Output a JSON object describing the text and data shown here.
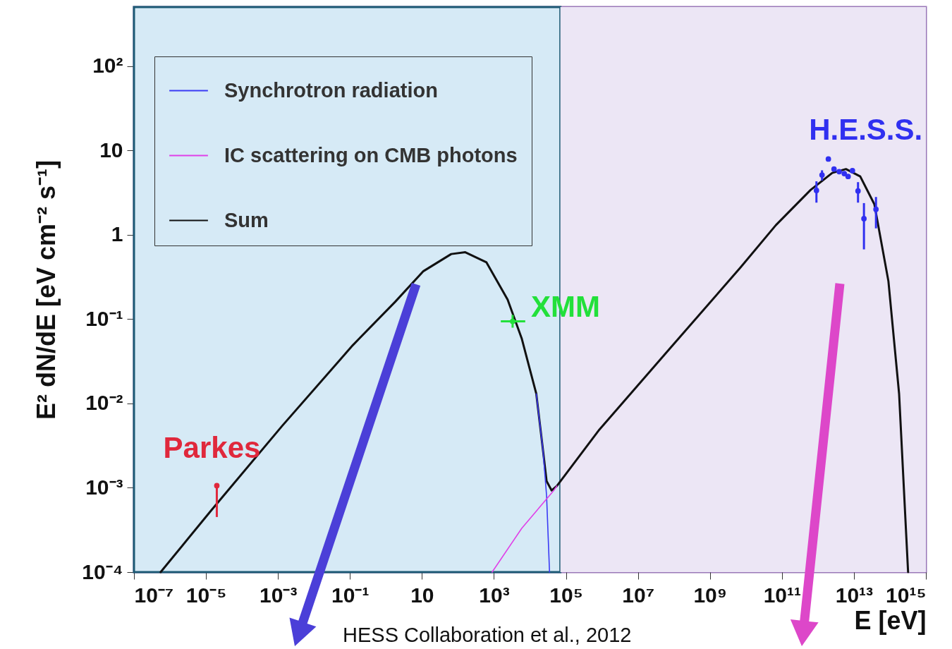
{
  "chart_data": {
    "type": "line",
    "xlabel": "E [eV]",
    "ylabel": "E² dN/dE [eV cm⁻² s⁻¹]",
    "log": "xy",
    "grid": false,
    "legend": "top left",
    "xlim": [
      1e-07,
      1000000000000000.0
    ],
    "ylim": [
      0.0001,
      500
    ],
    "xticks": [
      {
        "value": 1e-07,
        "label": "10⁻⁷"
      },
      {
        "value": 1e-05,
        "label": "10⁻⁵"
      },
      {
        "value": 0.001,
        "label": "10⁻³"
      },
      {
        "value": 0.1,
        "label": "10⁻¹"
      },
      10,
      {
        "value": 1000.0,
        "label": "10³"
      },
      {
        "value": 100000.0,
        "label": "10⁵"
      },
      {
        "value": 10000000.0,
        "label": "10⁷"
      },
      {
        "value": 1000000000.0,
        "label": "10⁹"
      },
      {
        "value": 100000000000.0,
        "label": "10¹¹"
      },
      {
        "value": 10000000000000.0,
        "label": "10¹³"
      },
      {
        "value": 1000000000000000.0,
        "label": "10¹⁵"
      }
    ],
    "yticks": [
      {
        "value": 0.0001,
        "label": "10⁻⁴"
      },
      {
        "value": 0.001,
        "label": "10⁻³"
      },
      {
        "value": 0.01,
        "label": "10⁻²"
      },
      {
        "value": 0.1,
        "label": "10⁻¹"
      },
      1,
      10,
      {
        "value": 100,
        "label": "10²"
      }
    ],
    "bands": [
      {
        "axis": "x",
        "from": 1e-07,
        "to": 70000.0,
        "color": "#d6eaf6"
      },
      {
        "axis": "x",
        "from": 70000.0,
        "to": 1000000000000000.0,
        "color": "#ece6f5"
      }
    ],
    "series": [
      {
        "name": "Synchrotron radiation",
        "color": "#3b3bf5",
        "x": [
          15000.0,
          23000.0,
          29000.0,
          35000.0
        ],
        "values": [
          0.013,
          0.0028,
          0.0008,
          0.0001
        ]
      },
      {
        "name": "IC scattering on CMB photons",
        "color": "#e040e8",
        "x": [
          890,
          5900,
          46000.0,
          56000.0
        ],
        "values": [
          0.0001,
          0.00033,
          0.00093,
          0.00105
        ]
      },
      {
        "name": "Sum",
        "color": "#111111",
        "x": [
          5.5e-07,
          1.4e-05,
          0.0013,
          0.12,
          1.8,
          11,
          65,
          160,
          620,
          2400,
          5900,
          15000.0,
          23000.0,
          29000.0,
          40000.0,
          56000.0,
          850000.0,
          78000000.0,
          7100000000.0,
          68000000000.0,
          630000000000.0,
          2500000000000.0,
          6000000000000.0,
          15000000000000.0,
          37000000000000.0,
          91000000000000.0,
          180000000000000.0,
          320000000000000.0
        ],
        "values": [
          0.0001,
          0.00054,
          0.0054,
          0.049,
          0.16,
          0.37,
          0.59,
          0.62,
          0.47,
          0.17,
          0.059,
          0.013,
          0.0028,
          0.0012,
          0.00093,
          0.00105,
          0.0049,
          0.045,
          0.41,
          1.3,
          3.4,
          5.4,
          6.0,
          4.9,
          2.3,
          0.28,
          0.013,
          0.0001
        ]
      },
      {
        "name": "Parkes",
        "type": "scatter",
        "color": "#e0283c",
        "marker": "circle",
        "x": [
          2e-05
        ],
        "values": [
          0.00106
        ],
        "errors": [
          [
            0.00045,
            0.00106
          ]
        ]
      },
      {
        "name": "XMM",
        "type": "scatter",
        "color": "#22e03a",
        "marker": "circle",
        "x": [
          3300
        ],
        "values": [
          0.094
        ],
        "errors": [
          [
            0.079,
            0.112
          ]
        ],
        "xerrors": [
          [
            1550,
            7400
          ]
        ]
      },
      {
        "name": "H.E.S.S.",
        "type": "scatter",
        "color": "#3030f0",
        "marker": "circle",
        "x": [
          910000000000.0,
          1300000000000.0,
          1950000000000.0,
          2800000000000.0,
          3900000000000.0,
          5400000000000.0,
          6900000000000.0,
          9100000000000.0,
          13000000000000.0,
          19000000000000.0,
          41000000000000.0
        ],
        "values": [
          3.35,
          5.1,
          7.9,
          6.0,
          5.6,
          5.3,
          4.9,
          5.75,
          3.3,
          1.55,
          2.0
        ],
        "errors": [
          [
            2.4,
            4.3
          ],
          [
            4.4,
            5.8
          ],
          null,
          null,
          null,
          null,
          null,
          null,
          [
            2.4,
            4.2
          ],
          [
            0.67,
            2.37
          ],
          [
            1.19,
            2.8
          ]
        ]
      }
    ],
    "annotations": [
      "HESS Collaboration et al., 2012"
    ]
  }
}
